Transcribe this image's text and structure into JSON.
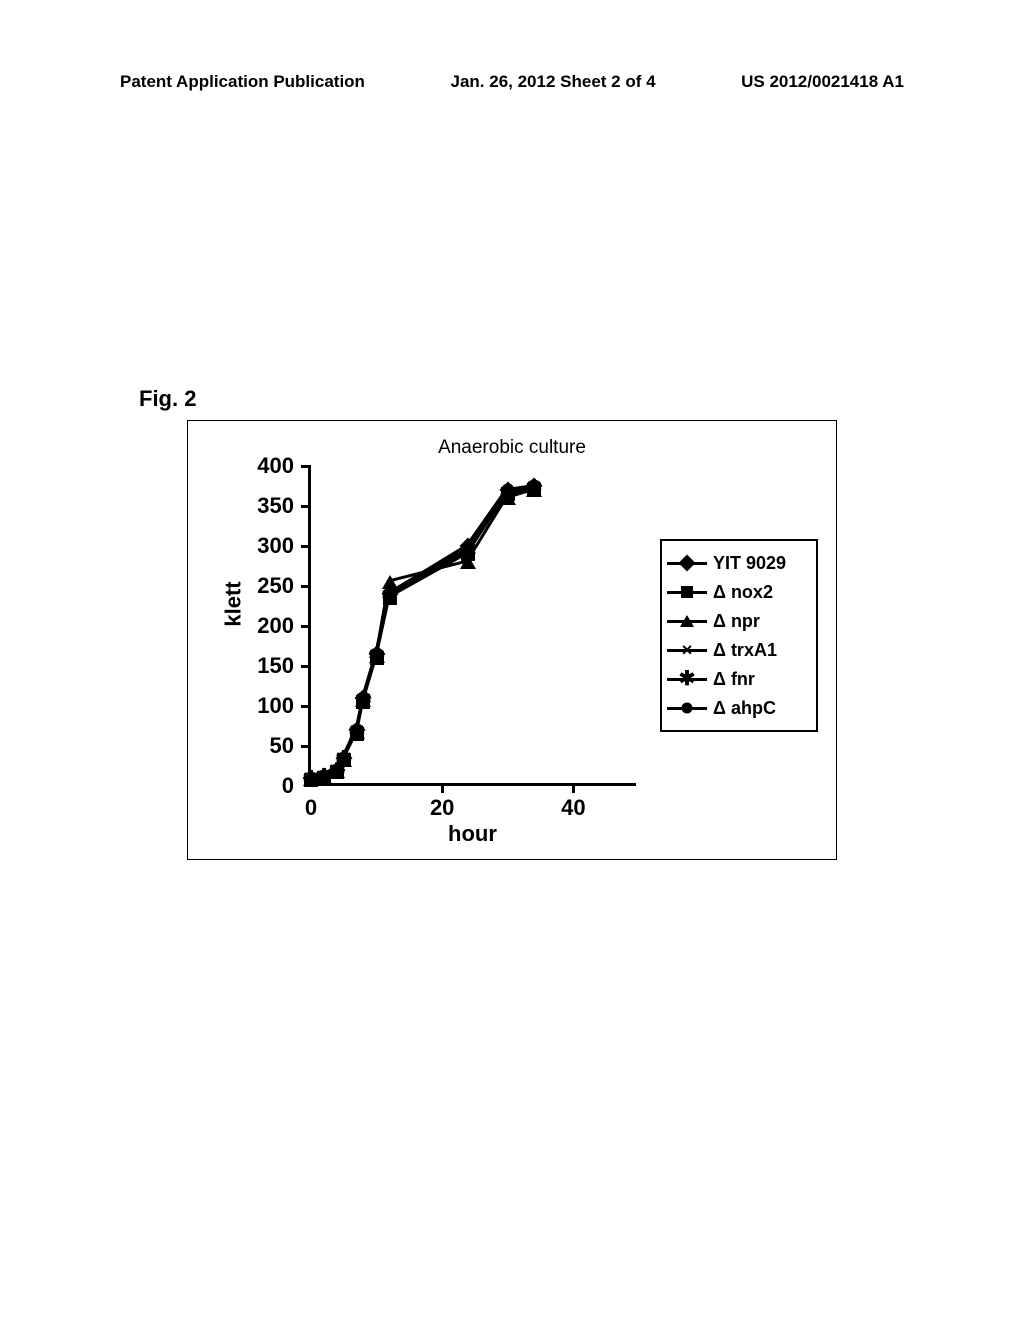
{
  "header": {
    "left": "Patent Application Publication",
    "center": "Jan. 26, 2012  Sheet 2 of 4",
    "right": "US 2012/0021418 A1"
  },
  "figure_label": "Fig.  2",
  "chart": {
    "type": "line",
    "title": "Anaerobic culture",
    "title_fontsize": 19,
    "ylabel": "klett",
    "xlabel": "hour",
    "label_fontsize": 22,
    "xlim": [
      0,
      50
    ],
    "ylim": [
      0,
      400
    ],
    "ytick_step": 50,
    "xtick_step": 20,
    "x_ticks": [
      0,
      20,
      40
    ],
    "y_ticks": [
      0,
      50,
      100,
      150,
      200,
      250,
      300,
      350,
      400
    ],
    "background_color": "#ffffff",
    "border_color": "#000000",
    "line_color": "#000000",
    "line_width": 3,
    "series": [
      {
        "name": "YIT 9029",
        "marker": "diamond",
        "x": [
          0,
          2,
          4,
          5,
          7,
          8,
          10,
          12,
          24,
          30,
          34
        ],
        "y": [
          10,
          12,
          20,
          35,
          70,
          110,
          165,
          240,
          300,
          370,
          375
        ]
      },
      {
        "name": "Δ nox2",
        "marker": "square",
        "x": [
          0,
          2,
          4,
          5,
          7,
          8,
          10,
          12,
          24,
          30,
          34
        ],
        "y": [
          8,
          10,
          18,
          32,
          65,
          105,
          160,
          235,
          290,
          365,
          370
        ]
      },
      {
        "name": "Δ npr",
        "marker": "triangle",
        "x": [
          0,
          2,
          4,
          5,
          7,
          8,
          10,
          12,
          24,
          30,
          34
        ],
        "y": [
          9,
          11,
          19,
          33,
          67,
          107,
          162,
          255,
          280,
          360,
          370
        ]
      },
      {
        "name": "Δ trxA1",
        "marker": "x",
        "x": [
          0,
          2,
          4,
          5,
          7,
          8,
          10,
          12,
          24,
          30,
          34
        ],
        "y": [
          10,
          12,
          20,
          35,
          70,
          110,
          165,
          240,
          295,
          370,
          375
        ]
      },
      {
        "name": "Δ fnr",
        "marker": "asterisk",
        "x": [
          0,
          2,
          4,
          5,
          7,
          8,
          10,
          12,
          24,
          30,
          34
        ],
        "y": [
          9,
          11,
          19,
          34,
          68,
          108,
          163,
          238,
          292,
          366,
          372
        ]
      },
      {
        "name": "Δ ahpC",
        "marker": "circle",
        "x": [
          0,
          2,
          4,
          5,
          7,
          8,
          10,
          12,
          24,
          30,
          34
        ],
        "y": [
          10,
          12,
          20,
          35,
          70,
          110,
          165,
          240,
          295,
          368,
          374
        ]
      }
    ],
    "legend": {
      "position": "right",
      "border_color": "#000000",
      "items": [
        {
          "label": "YIT 9029",
          "marker": "diamond"
        },
        {
          "label": "Δ nox2",
          "marker": "square"
        },
        {
          "label": "Δ npr",
          "marker": "triangle"
        },
        {
          "label": "Δ trxA1",
          "marker": "x"
        },
        {
          "label": "Δ fnr",
          "marker": "asterisk"
        },
        {
          "label": "Δ ahpC",
          "marker": "circle"
        }
      ]
    }
  }
}
